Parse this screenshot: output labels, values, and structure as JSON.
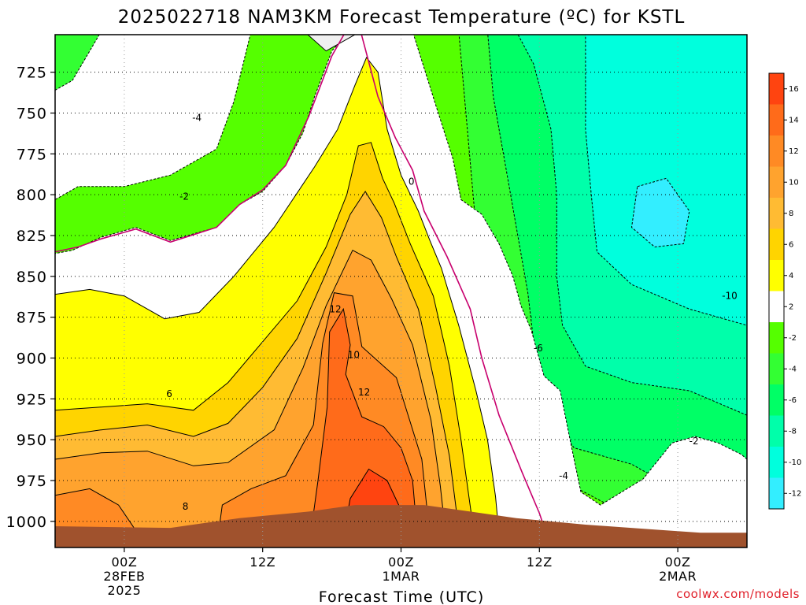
{
  "chart_data": {
    "type": "heatmap",
    "title": "2025022718 NAM3KM Forecast Temperature (ºC) for KSTL",
    "xlabel": "Forecast Time (UTC)",
    "ylabel": "",
    "y_ticks": [
      "725",
      "750",
      "775",
      "800",
      "825",
      "850",
      "875",
      "900",
      "925",
      "950",
      "975",
      "1000"
    ],
    "y_values": [
      725,
      750,
      775,
      800,
      825,
      850,
      875,
      900,
      925,
      950,
      975,
      1000
    ],
    "ylim": [
      1016,
      702
    ],
    "x_ticks": [
      {
        "hour": 6,
        "lines": [
          "00Z",
          "28FEB",
          "2025"
        ]
      },
      {
        "hour": 18,
        "lines": [
          "12Z"
        ]
      },
      {
        "hour": 30,
        "lines": [
          "00Z",
          "1MAR"
        ]
      },
      {
        "hour": 42,
        "lines": [
          "12Z"
        ]
      },
      {
        "hour": 54,
        "lines": [
          "00Z",
          "2MAR"
        ]
      }
    ],
    "xlim": [
      0,
      60
    ],
    "grid": true,
    "colorbar": {
      "labels": [
        "16",
        "14",
        "12",
        "10",
        "8",
        "6",
        "4",
        "2",
        "-2",
        "-4",
        "-6",
        "-8",
        "-10",
        "-12"
      ],
      "colors": [
        "#ff4410",
        "#ff6b1a",
        "#ff8a24",
        "#ffa32e",
        "#ffbb33",
        "#ffd400",
        "#ffff00",
        "#ffffff",
        "#55ff00",
        "#33ff33",
        "#00ff66",
        "#00ffaa",
        "#00ffdd",
        "#33eeff"
      ]
    },
    "contour_labels": [
      {
        "text": "-4",
        "hour": 12.3,
        "p": 753
      },
      {
        "text": "-2",
        "hour": 11.2,
        "p": 801
      },
      {
        "text": "0",
        "hour": 30.9,
        "p": 792
      },
      {
        "text": "12",
        "hour": 24.3,
        "p": 870
      },
      {
        "text": "10",
        "hour": 25.9,
        "p": 898
      },
      {
        "text": "12",
        "hour": 26.8,
        "p": 921
      },
      {
        "text": "6",
        "hour": 9.9,
        "p": 922
      },
      {
        "text": "8",
        "hour": 11.3,
        "p": 991
      },
      {
        "text": "-6",
        "hour": 41.9,
        "p": 894
      },
      {
        "text": "-10",
        "hour": 58.5,
        "p": 862
      },
      {
        "text": "-2",
        "hour": 55.4,
        "p": 951
      },
      {
        "text": "-4",
        "hour": 44.1,
        "p": 972
      }
    ],
    "series": [
      {
        "name": "-2",
        "color": "#ffffff",
        "style": "dashed",
        "points": [
          [
            0,
            736
          ],
          [
            1.5,
            730
          ],
          [
            4,
            700
          ],
          [
            17,
            700
          ],
          [
            15.5,
            743
          ],
          [
            14,
            772
          ],
          [
            10,
            788
          ],
          [
            6,
            795
          ],
          [
            2,
            795
          ],
          [
            0,
            803
          ],
          [
            0,
            836
          ],
          [
            1.5,
            834
          ],
          [
            4,
            826
          ],
          [
            7,
            820
          ],
          [
            10,
            828
          ],
          [
            14,
            820
          ],
          [
            16,
            806
          ],
          [
            18,
            798
          ],
          [
            20,
            782
          ],
          [
            21.5,
            762
          ],
          [
            22.5,
            740
          ],
          [
            24,
            712
          ],
          [
            25.5,
            700
          ],
          [
            31,
            700
          ],
          [
            33,
            745
          ],
          [
            34.5,
            778
          ],
          [
            35.2,
            803
          ],
          [
            37,
            812
          ],
          [
            38.5,
            830
          ],
          [
            39.7,
            850
          ],
          [
            40.4,
            868
          ],
          [
            41.3,
            883
          ],
          [
            42.4,
            911
          ],
          [
            43.8,
            920
          ],
          [
            44.8,
            955
          ],
          [
            45.6,
            982
          ],
          [
            47.3,
            990
          ],
          [
            51,
            974
          ],
          [
            53.5,
            952
          ],
          [
            55.5,
            948
          ],
          [
            57.5,
            952
          ],
          [
            59.5,
            959
          ],
          [
            60,
            962
          ],
          [
            60,
            1016
          ],
          [
            0,
            1016
          ]
        ]
      },
      {
        "name": "0",
        "color": "#f0f0f0",
        "style": "solid",
        "points": [
          [
            21.6,
            700
          ],
          [
            23.5,
            712
          ],
          [
            26.5,
            700
          ]
        ]
      },
      {
        "name": "2",
        "color": "#ffff00",
        "style": "solid",
        "points": [
          [
            0,
            861
          ],
          [
            3,
            858
          ],
          [
            6,
            862
          ],
          [
            9.5,
            876
          ],
          [
            12.5,
            872
          ],
          [
            15.5,
            850
          ],
          [
            19,
            820
          ],
          [
            22.5,
            783
          ],
          [
            24.5,
            760
          ],
          [
            26,
            733
          ],
          [
            27,
            716
          ],
          [
            28,
            725
          ],
          [
            28.8,
            760
          ],
          [
            30,
            788
          ],
          [
            31.5,
            810
          ],
          [
            32.5,
            828
          ],
          [
            33.5,
            845
          ],
          [
            35,
            880
          ],
          [
            36.5,
            920
          ],
          [
            37.5,
            950
          ],
          [
            38.2,
            985
          ],
          [
            38.6,
            1016
          ],
          [
            0,
            1016
          ]
        ]
      },
      {
        "name": "4",
        "color": "#ffd400",
        "style": "solid",
        "points": [
          [
            0,
            932
          ],
          [
            4,
            930
          ],
          [
            8,
            928
          ],
          [
            12,
            932
          ],
          [
            15,
            915
          ],
          [
            18,
            890
          ],
          [
            21,
            865
          ],
          [
            23.5,
            832
          ],
          [
            25.3,
            800
          ],
          [
            26.3,
            770
          ],
          [
            27.4,
            768
          ],
          [
            28.4,
            790
          ],
          [
            29.4,
            805
          ],
          [
            30.8,
            830
          ],
          [
            32.8,
            862
          ],
          [
            34.2,
            905
          ],
          [
            35.2,
            950
          ],
          [
            36.5,
            1016
          ],
          [
            0,
            1016
          ]
        ]
      },
      {
        "name": "6",
        "color": "#ffbb33",
        "style": "solid",
        "points": [
          [
            0,
            948
          ],
          [
            4,
            944
          ],
          [
            8,
            941
          ],
          [
            12,
            948
          ],
          [
            15,
            940
          ],
          [
            18,
            918
          ],
          [
            21,
            888
          ],
          [
            23.5,
            848
          ],
          [
            25.6,
            812
          ],
          [
            26.9,
            798
          ],
          [
            28.3,
            814
          ],
          [
            29.6,
            838
          ],
          [
            31.5,
            870
          ],
          [
            33,
            918
          ],
          [
            34.2,
            960
          ],
          [
            35.2,
            1016
          ],
          [
            0,
            1016
          ]
        ]
      },
      {
        "name": "8",
        "color": "#ffa32e",
        "style": "solid",
        "points": [
          [
            0,
            962
          ],
          [
            4,
            958
          ],
          [
            8,
            957
          ],
          [
            12,
            966
          ],
          [
            15,
            964
          ],
          [
            19,
            944
          ],
          [
            21.5,
            906
          ],
          [
            23.5,
            868
          ],
          [
            25.8,
            834
          ],
          [
            27.4,
            840
          ],
          [
            29.2,
            864
          ],
          [
            31,
            892
          ],
          [
            32.6,
            938
          ],
          [
            33.4,
            978
          ],
          [
            34,
            1016
          ],
          [
            0,
            1016
          ]
        ]
      },
      {
        "name": "10",
        "color": "#ff8a24",
        "style": "solid",
        "points": [
          [
            0,
            984
          ],
          [
            3,
            980
          ],
          [
            5.5,
            990
          ],
          [
            8,
            1016
          ],
          [
            0,
            1016
          ]
        ]
      },
      {
        "name": "10b",
        "color": "#ff8a24",
        "style": "solid",
        "points": [
          [
            14,
            1016
          ],
          [
            14.5,
            990
          ],
          [
            17,
            980
          ],
          [
            20,
            972
          ],
          [
            22.4,
            941
          ],
          [
            23.2,
            891
          ],
          [
            24.2,
            860
          ],
          [
            25.8,
            862
          ],
          [
            26.6,
            893
          ],
          [
            29.6,
            912
          ],
          [
            31.8,
            962
          ],
          [
            32.6,
            1016
          ]
        ]
      },
      {
        "name": "12",
        "color": "#ff6b1a",
        "style": "solid",
        "points": [
          [
            22,
            1016
          ],
          [
            22.8,
            975
          ],
          [
            23.6,
            930
          ],
          [
            23.8,
            884
          ],
          [
            25,
            870
          ],
          [
            25.6,
            892
          ],
          [
            25.2,
            910
          ],
          [
            26.6,
            936
          ],
          [
            28.5,
            942
          ],
          [
            30,
            955
          ],
          [
            31,
            975
          ],
          [
            31.5,
            1016
          ]
        ]
      },
      {
        "name": "14",
        "color": "#ff4410",
        "style": "solid",
        "points": [
          [
            24.8,
            1016
          ],
          [
            25.6,
            986
          ],
          [
            27.2,
            968
          ],
          [
            28.8,
            975
          ],
          [
            29.8,
            990
          ],
          [
            30.4,
            1016
          ]
        ]
      }
    ]
  },
  "credit": "coolwx.com/models"
}
